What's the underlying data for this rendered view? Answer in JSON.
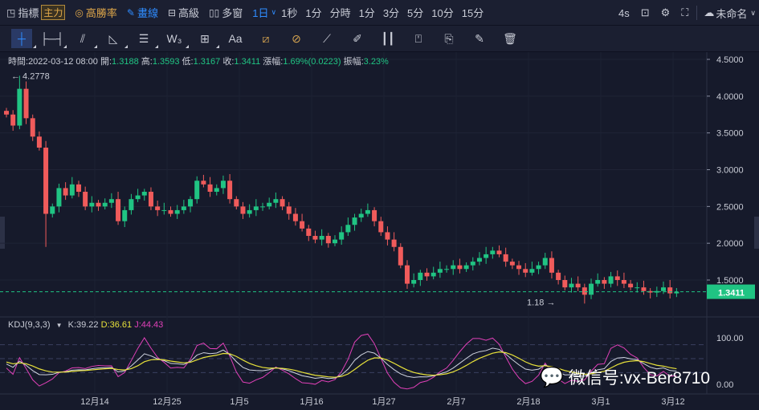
{
  "topbar": {
    "indicators": "指標",
    "main_badge": "主力",
    "win_rate": "高勝率",
    "draw": "畫線",
    "advanced": "高級",
    "multi_window": "多窗",
    "interval_selected": "1日",
    "intervals": [
      "1秒",
      "1分",
      "分時",
      "1分",
      "3分",
      "5分",
      "10分",
      "15分"
    ],
    "refresh": "4s",
    "layout_name": "未命名"
  },
  "toolbar": {
    "tools": [
      "crosshair",
      "horizontal-line",
      "parallel-lines",
      "triangle",
      "fib-lines",
      "wave",
      "add-box",
      "text",
      "ruler-rect",
      "ruler-circle",
      "ruler",
      "brush",
      "candle-type",
      "bookmark",
      "note-copy",
      "note-edit",
      "trash"
    ],
    "text_tool": "Aa"
  },
  "info": {
    "time_label": "時間:",
    "time": "2022-03-12 08:00",
    "open_label": "開:",
    "open": "1.3188",
    "high_label": "高:",
    "high": "1.3593",
    "low_label": "低:",
    "low": "1.3167",
    "close_label": "收:",
    "close": "1.3411",
    "change_label": "漲幅:",
    "change": "1.69%(0.0223)",
    "amp_label": "振幅:",
    "amp": "3.23%"
  },
  "kdj": {
    "name": "KDJ(9,3,3)",
    "k": "K:39.22",
    "d": "D:36.61",
    "j": "J:44.43"
  },
  "watermark": "微信号:vx-Ber8710",
  "colors": {
    "up": "#20c483",
    "down": "#f05b5b",
    "k": "#d0d4e0",
    "d": "#e8e23a",
    "j": "#e040b8",
    "accent": "#2f8cff"
  },
  "chart_data": {
    "type": "candlestick",
    "y_ticks": [
      "4.5000",
      "4.0000",
      "3.5000",
      "3.0000",
      "2.5000",
      "2.0000",
      "1.5000"
    ],
    "ylim": [
      1.0,
      4.6
    ],
    "x_ticks": [
      "12月14",
      "12月25",
      "1月5",
      "1月16",
      "1月27",
      "2月7",
      "2月18",
      "3月1",
      "3月12"
    ],
    "max_label": "4.2778",
    "min_label": "1.18",
    "last_price": "1.3411",
    "kdj_ticks": [
      "100.00",
      "0.00"
    ],
    "first_open": 3.8,
    "closes": [
      3.75,
      3.6,
      4.1,
      3.7,
      3.45,
      3.3,
      2.4,
      2.5,
      2.75,
      2.65,
      2.8,
      2.7,
      2.5,
      2.55,
      2.5,
      2.55,
      2.6,
      2.3,
      2.45,
      2.6,
      2.65,
      2.7,
      2.5,
      2.45,
      2.45,
      2.4,
      2.45,
      2.5,
      2.6,
      2.85,
      2.8,
      2.7,
      2.75,
      2.85,
      2.6,
      2.5,
      2.4,
      2.45,
      2.5,
      2.5,
      2.55,
      2.6,
      2.5,
      2.4,
      2.3,
      2.2,
      2.1,
      2.05,
      2.1,
      2.0,
      2.05,
      2.15,
      2.25,
      2.35,
      2.4,
      2.45,
      2.3,
      2.15,
      2.05,
      1.95,
      1.7,
      1.45,
      1.5,
      1.6,
      1.55,
      1.6,
      1.65,
      1.65,
      1.7,
      1.65,
      1.7,
      1.75,
      1.8,
      1.85,
      1.9,
      1.85,
      1.75,
      1.7,
      1.65,
      1.6,
      1.65,
      1.7,
      1.8,
      1.6,
      1.5,
      1.4,
      1.45,
      1.4,
      1.3,
      1.45,
      1.5,
      1.45,
      1.55,
      1.5,
      1.45,
      1.4,
      1.4,
      1.35,
      1.33,
      1.35,
      1.4,
      1.3188,
      1.3411
    ]
  }
}
